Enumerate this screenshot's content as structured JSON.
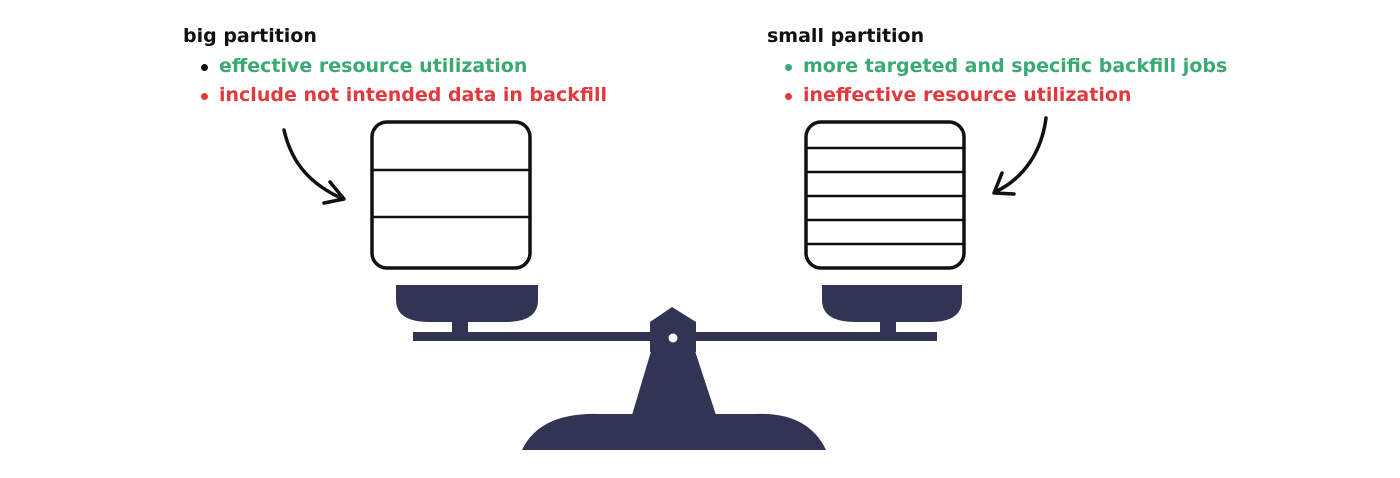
{
  "left": {
    "title": "big partition",
    "pro": "effective resource utilization",
    "con": "include not intended data in backfill"
  },
  "right": {
    "title": "small partition",
    "pro": "more targeted and specific backfill jobs",
    "con": "ineffective resource utilization"
  },
  "colors": {
    "pro": "#3aaa74",
    "con": "#e03a3e",
    "scale": "#313452",
    "ink": "#111111"
  }
}
